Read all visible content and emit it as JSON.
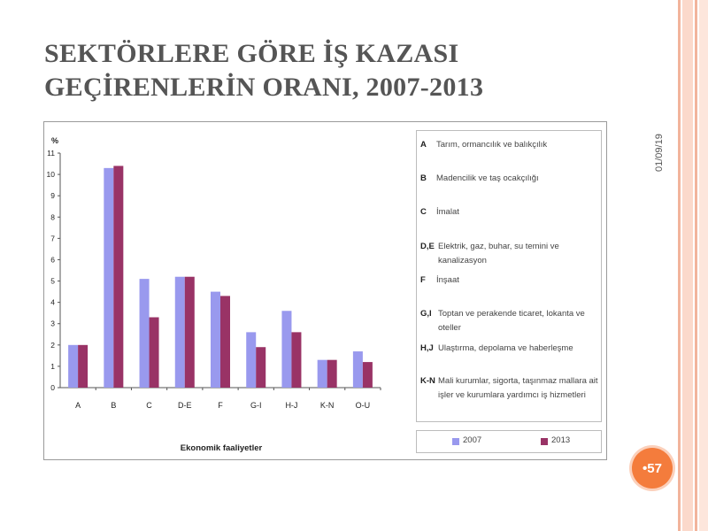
{
  "slide": {
    "title_line1": "SEKTÖRLERE GÖRE İŞ KAZASI",
    "title_line2": "GEÇİRENLERİN ORANI, 2007-2013",
    "date": "01/09/19",
    "page_number": "•57"
  },
  "colors": {
    "series_2007": "#9999ee",
    "series_2013": "#993366",
    "page_badge": "#f47c3c"
  },
  "chart_data": {
    "type": "bar",
    "ylabel": "%",
    "xlabel": "Ekonomik faaliyetler",
    "ylim": [
      0,
      11
    ],
    "yticks": [
      0,
      1,
      2,
      3,
      4,
      5,
      6,
      7,
      8,
      9,
      10,
      11
    ],
    "categories": [
      "A",
      "B",
      "C",
      "D-E",
      "F",
      "G-I",
      "H-J",
      "K-N",
      "O-U"
    ],
    "series": [
      {
        "name": "2007",
        "values": [
          2.0,
          10.3,
          5.1,
          5.2,
          4.5,
          2.6,
          3.6,
          1.3,
          1.7
        ]
      },
      {
        "name": "2013",
        "values": [
          2.0,
          10.4,
          3.3,
          5.2,
          4.3,
          1.9,
          2.6,
          1.3,
          1.2
        ]
      }
    ],
    "legend": [
      {
        "code": "A",
        "text": "Tarım, ormancılık ve balıkçılık"
      },
      {
        "code": "B",
        "text": "Madencilik ve taş ocakçılığı"
      },
      {
        "code": "C",
        "text": "İmalat"
      },
      {
        "code": "D,E",
        "text": "Elektrik, gaz, buhar, su temini ve kanalizasyon"
      },
      {
        "code": "F",
        "text": "İnşaat"
      },
      {
        "code": "G,I",
        "text": "Toptan ve perakende ticaret, lokanta ve oteller"
      },
      {
        "code": "H,J",
        "text": "Ulaştırma, depolama ve haberleşme"
      },
      {
        "code": "K-N",
        "text": "Mali kurumlar, sigorta, taşınmaz mallara ait işler ve kurumlara yardımcı iş hizmetleri"
      }
    ]
  }
}
